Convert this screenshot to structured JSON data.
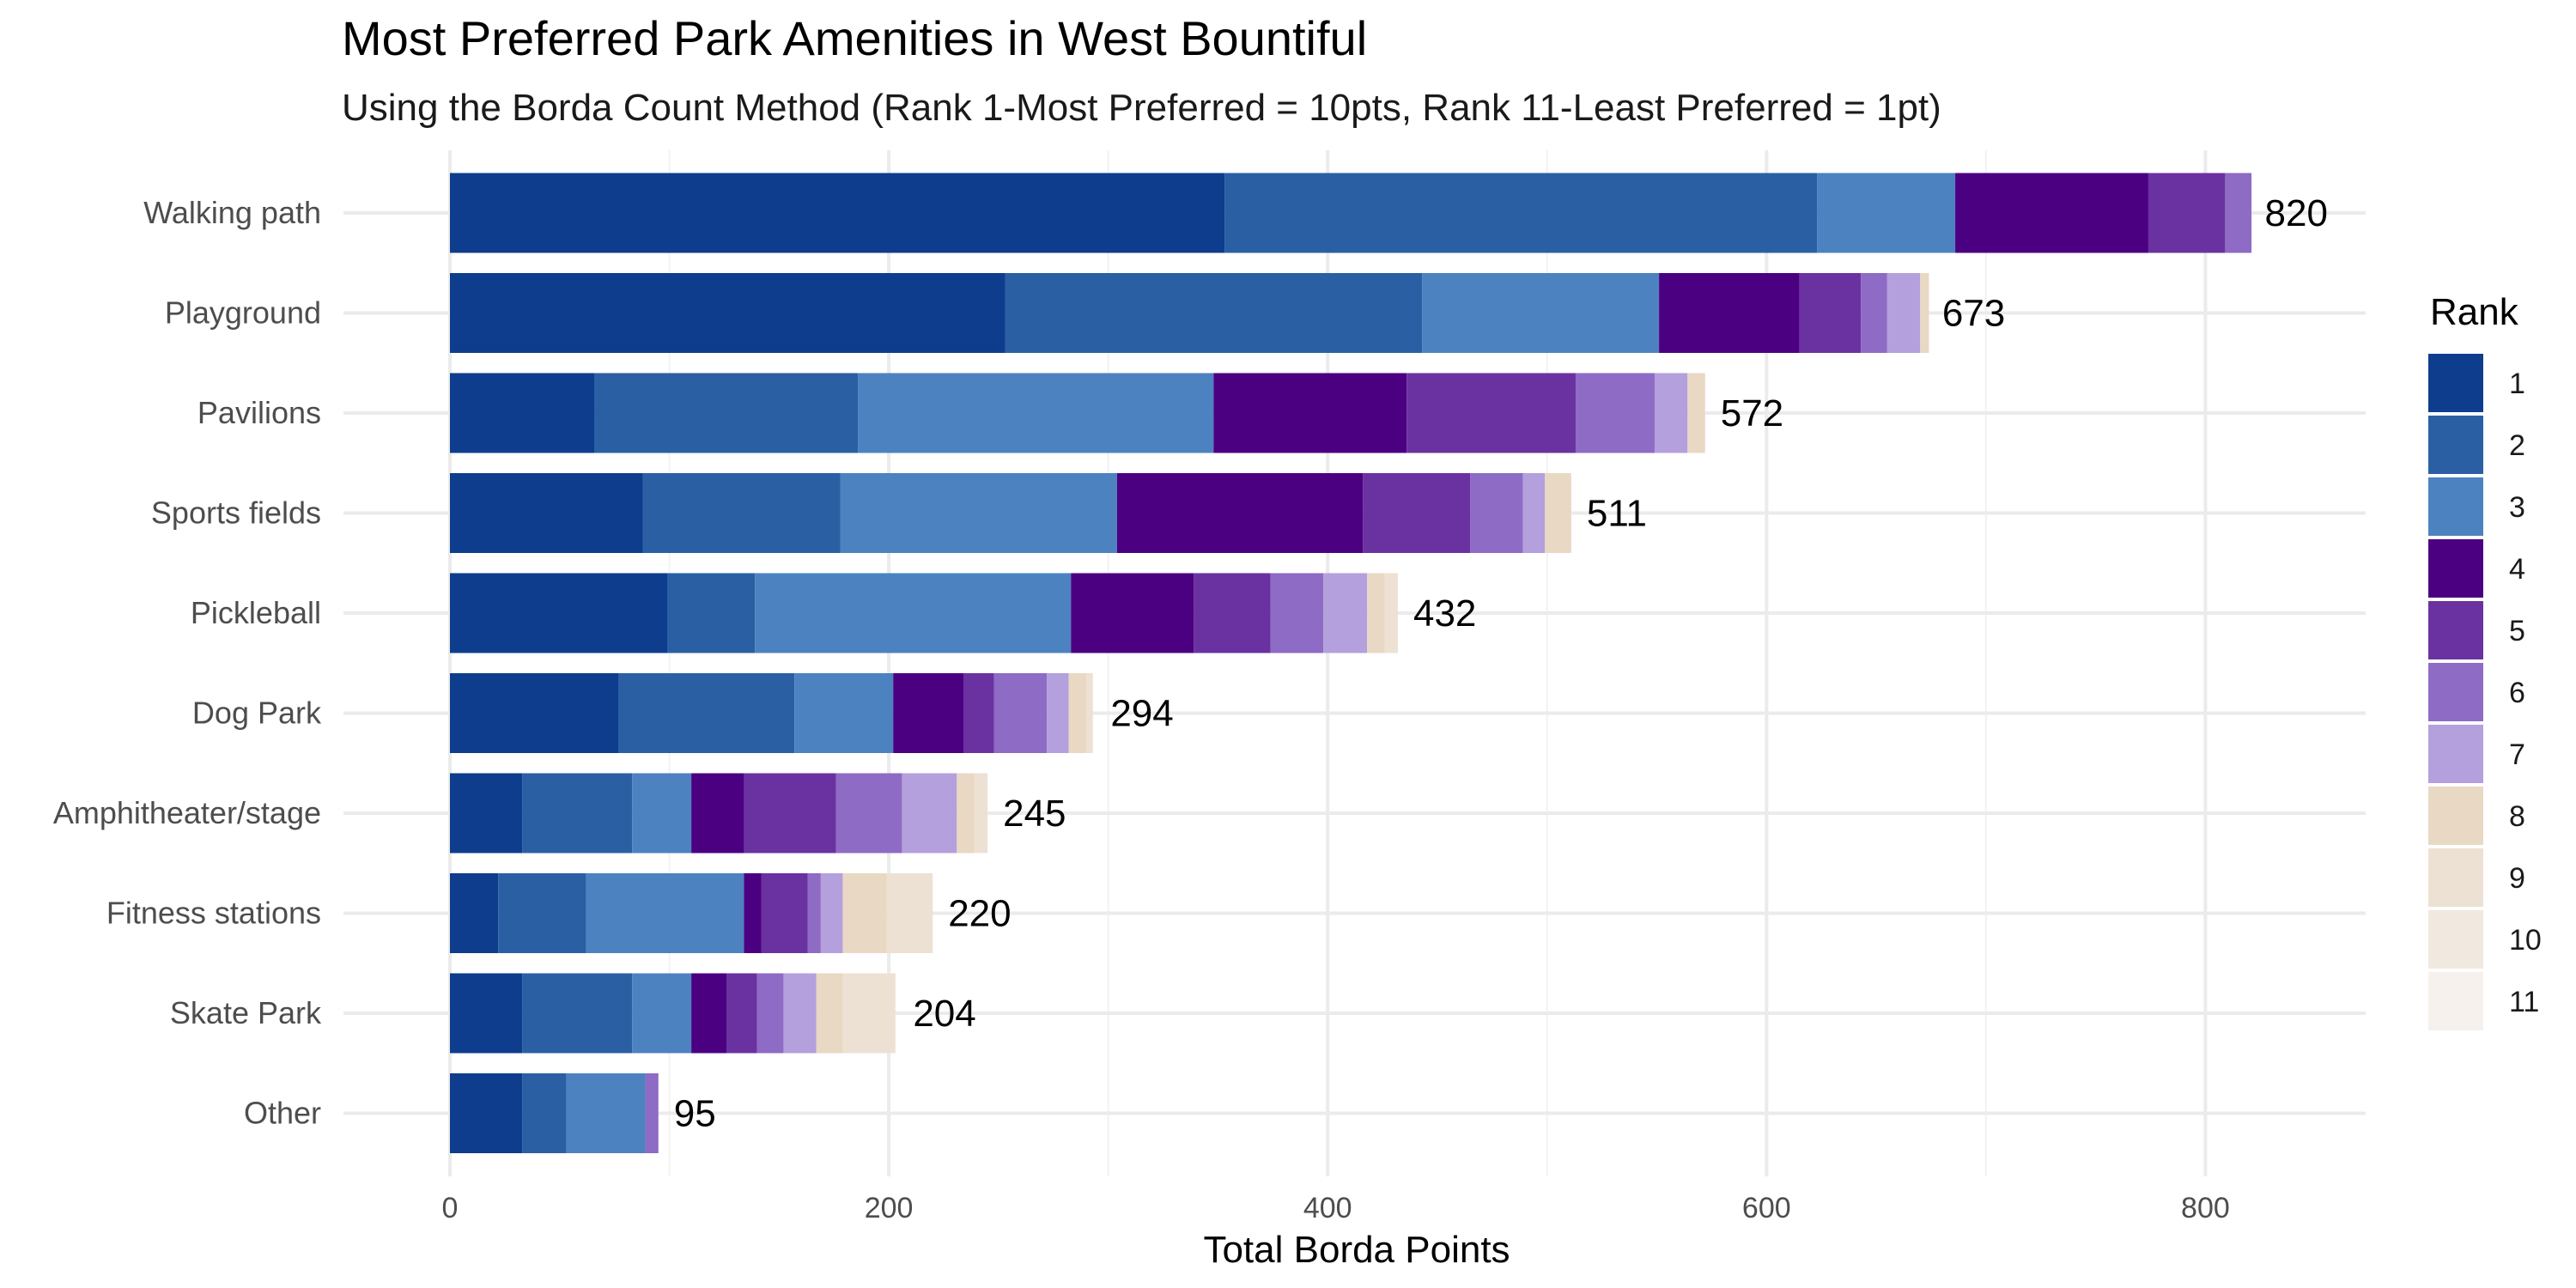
{
  "chart_data": {
    "type": "bar",
    "orientation": "horizontal",
    "stacked": true,
    "title": "Most Preferred Park Amenities in West Bountiful",
    "subtitle": "Using the Borda Count Method (Rank 1-Most Preferred = 10pts, Rank 11-Least Preferred = 1pt)",
    "xlabel": "Total Borda Points",
    "ylabel": "",
    "xlim": [
      0,
      870
    ],
    "x_ticks": [
      0,
      200,
      400,
      600,
      800
    ],
    "grid": true,
    "legend": {
      "title": "Rank",
      "position": "right"
    },
    "categories": [
      "Walking path",
      "Playground",
      "Pavilions",
      "Sports fields",
      "Pickleball",
      "Dog Park",
      "Amphitheater/stage",
      "Fitness stations",
      "Skate Park",
      "Other"
    ],
    "totals": [
      820,
      673,
      572,
      511,
      432,
      294,
      245,
      220,
      204,
      95
    ],
    "series": [
      {
        "name": "1",
        "color": "#0d3d8c",
        "values": [
          353,
          253,
          66,
          88,
          99,
          77,
          33,
          22,
          33,
          33
        ]
      },
      {
        "name": "2",
        "color": "#2b5fa4",
        "values": [
          270,
          190,
          120,
          90,
          40,
          80,
          50,
          40,
          50,
          20
        ]
      },
      {
        "name": "3",
        "color": "#4d82c0",
        "values": [
          63,
          108,
          162,
          126,
          144,
          45,
          27,
          72,
          27,
          36
        ]
      },
      {
        "name": "4",
        "color": "#4b0082",
        "values": [
          88,
          64,
          88,
          112,
          56,
          32,
          24,
          8,
          16,
          0
        ]
      },
      {
        "name": "5",
        "color": "#6a32a0",
        "values": [
          35,
          28,
          77,
          49,
          35,
          14,
          42,
          21,
          14,
          0
        ]
      },
      {
        "name": "6",
        "color": "#8e6bc4",
        "values": [
          12,
          12,
          36,
          24,
          24,
          24,
          30,
          6,
          12,
          6
        ]
      },
      {
        "name": "7",
        "color": "#b3a0dc",
        "values": [
          0,
          15,
          15,
          10,
          20,
          10,
          25,
          10,
          15,
          0
        ]
      },
      {
        "name": "8",
        "color": "#e8d8c4",
        "values": [
          0,
          4,
          8,
          12,
          8,
          8,
          8,
          20,
          12,
          0
        ]
      },
      {
        "name": "9",
        "color": "#ede1d3",
        "values": [
          0,
          0,
          0,
          0,
          6,
          3,
          6,
          21,
          24,
          0
        ]
      },
      {
        "name": "10",
        "color": "#f1e8df",
        "values": [
          0,
          0,
          0,
          0,
          0,
          0,
          0,
          0,
          0,
          0
        ]
      },
      {
        "name": "11",
        "color": "#f6f1ec",
        "values": [
          0,
          0,
          0,
          0,
          0,
          0,
          0,
          0,
          0,
          0
        ]
      }
    ]
  }
}
